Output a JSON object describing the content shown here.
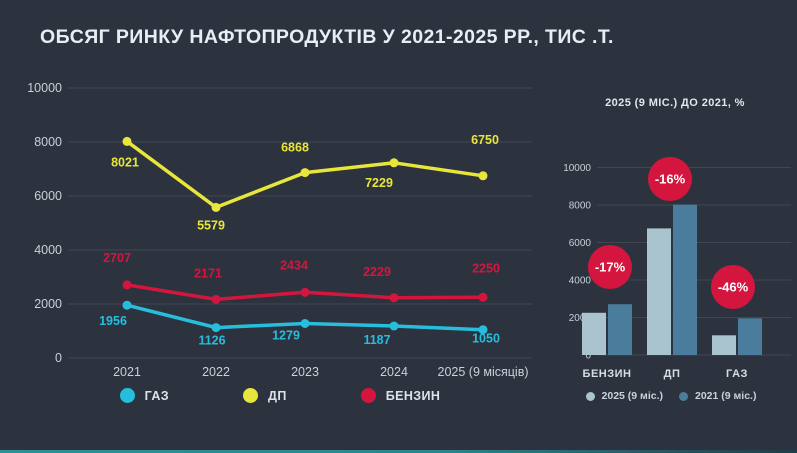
{
  "page": {
    "title": "ОБСЯГ РИНКУ НАФТОПРОДУКТІВ У 2021-2025 РР., ТИС .Т."
  },
  "colors": {
    "background": "#2c333e",
    "gas": "#27bede",
    "dp": "#e9e63b",
    "benzin": "#d4163e",
    "badge": "#d4163e",
    "bar_2025": "#a9c4cf",
    "bar_2021": "#4a7d9b",
    "text": "#e8edf3",
    "muted_text": "#c8d0da",
    "accent_bottom": "#2f9097"
  },
  "chart_data": [
    {
      "type": "line",
      "title": "",
      "categories": [
        "2021",
        "2022",
        "2023",
        "2024",
        "2025 (9 місяців)"
      ],
      "series": [
        {
          "name": "ГАЗ",
          "color": "#27bede",
          "values": [
            1956,
            1126,
            1279,
            1187,
            1050
          ],
          "label_offsets": [
            [
              -14,
              20
            ],
            [
              -4,
              17
            ],
            [
              -19,
              16
            ],
            [
              -17,
              18
            ],
            [
              3,
              13
            ]
          ]
        },
        {
          "name": "ДП",
          "color": "#e9e63b",
          "values": [
            8021,
            5579,
            6868,
            7229,
            6750
          ],
          "label_offsets": [
            [
              -2,
              25
            ],
            [
              -5,
              22
            ],
            [
              -10,
              -21
            ],
            [
              -15,
              24
            ],
            [
              2,
              -32
            ]
          ]
        },
        {
          "name": "БЕНЗИН",
          "color": "#d4163e",
          "values": [
            2707,
            2171,
            2434,
            2229,
            2250
          ],
          "label_offsets": [
            [
              -10,
              -23
            ],
            [
              -8,
              -22
            ],
            [
              -11,
              -23
            ],
            [
              -17,
              -22
            ],
            [
              3,
              -25
            ]
          ]
        }
      ],
      "ylim": [
        0,
        10000
      ],
      "yticks": [
        0,
        2000,
        4000,
        6000,
        8000,
        10000
      ],
      "grid": true,
      "legend_position": "bottom"
    },
    {
      "type": "bar",
      "title": "2025 (9 МІС.) ДО 2021, %",
      "categories": [
        "БЕНЗИН",
        "ДП",
        "ГАЗ"
      ],
      "series": [
        {
          "name": "2025 (9 міс.)",
          "color": "#a9c4cf",
          "values": [
            2250,
            6750,
            1050
          ]
        },
        {
          "name": "2021 (9 міс.)",
          "color": "#4a7d9b",
          "values": [
            2707,
            8021,
            1956
          ]
        }
      ],
      "badges": [
        "-17%",
        "-16%",
        "-46%"
      ],
      "badge_centers": [
        [
          57,
          142
        ],
        [
          117,
          54
        ],
        [
          180,
          162
        ]
      ],
      "ylim": [
        0,
        10000
      ],
      "yticks": [
        0,
        2000,
        4000,
        6000,
        8000,
        10000
      ],
      "grid": true,
      "legend_position": "bottom"
    }
  ]
}
